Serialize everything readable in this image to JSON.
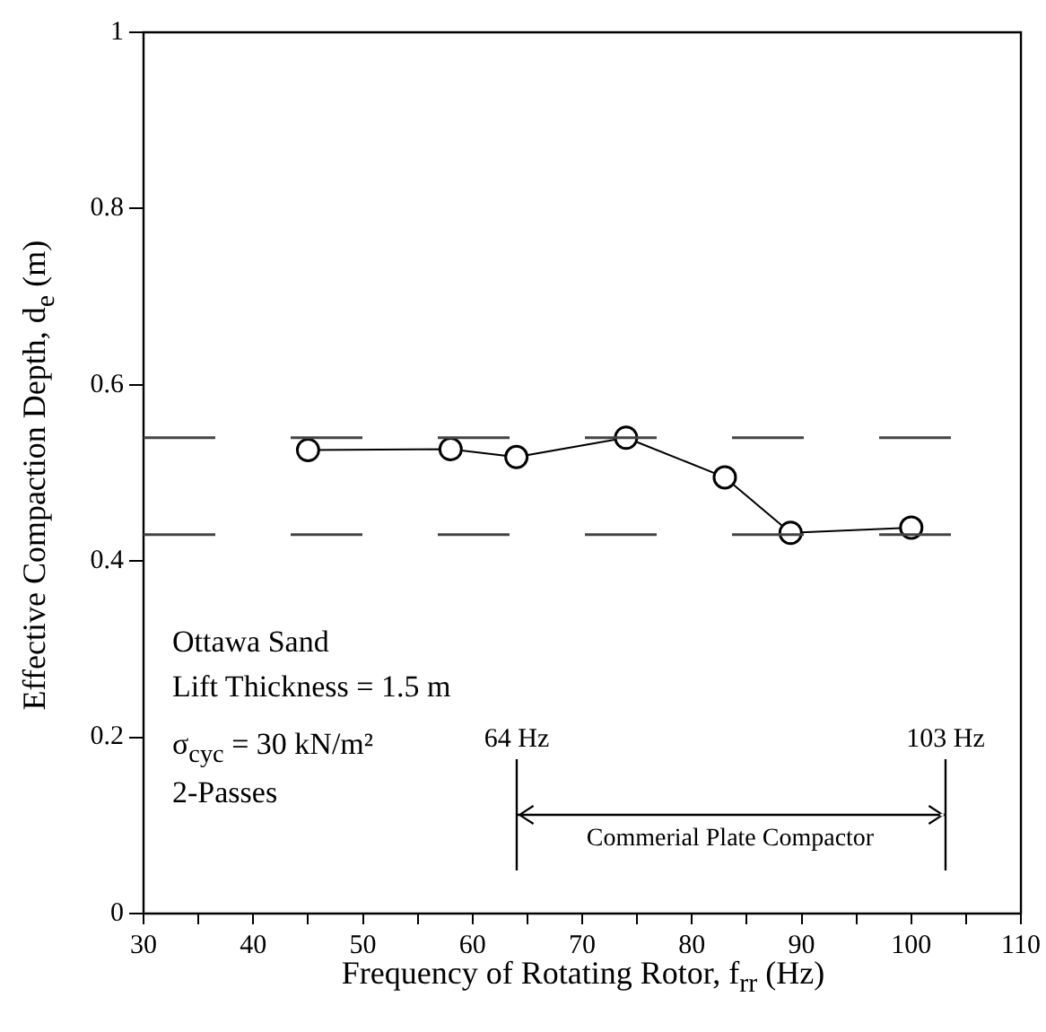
{
  "chart_data": {
    "type": "line",
    "xlabel": "Frequency of Rotating Rotor, f$_{rr}$ (Hz)",
    "ylabel": "Effective Compaction Depth, d$_{e}$ (m)",
    "x": [
      45,
      58,
      64,
      74,
      83,
      89,
      100
    ],
    "series": [
      {
        "color": "#000000",
        "values": [
          0.526,
          0.527,
          0.518,
          0.54,
          0.495,
          0.432,
          0.438
        ]
      }
    ],
    "xlim": [
      30,
      110
    ],
    "xticks": [
      30,
      {
        "value": 35,
        "label": null
      },
      40,
      {
        "value": 45,
        "label": null
      },
      50,
      {
        "value": 55,
        "label": null
      },
      60,
      {
        "value": 65,
        "label": null
      },
      70,
      {
        "value": 75,
        "label": null
      },
      80,
      {
        "value": 85,
        "label": null
      },
      90,
      {
        "value": 95,
        "label": null
      },
      100,
      {
        "value": 105,
        "label": null
      },
      110
    ],
    "ylim": [
      0,
      1
    ],
    "yticks": [
      0,
      0.2,
      0.4,
      0.6,
      0.8,
      1
    ],
    "ref_lines": [
      {
        "axis": "y",
        "value": 0.54,
        "color": "#444444",
        "line_style": "dashed"
      },
      {
        "axis": "y",
        "value": 0.43,
        "color": "#444444",
        "line_style": "dashed"
      }
    ],
    "annotations": [
      "Ottawa Sand",
      "Lift Thickness = 1.5 m",
      "σ$_{cyc}$ = 30 kN/m²",
      "2-Passes",
      "64 Hz",
      "103 Hz",
      "Commerial Plate Compactor"
    ],
    "grid": false,
    "legend": false,
    "marker": "circle",
    "line_style": "solid"
  }
}
